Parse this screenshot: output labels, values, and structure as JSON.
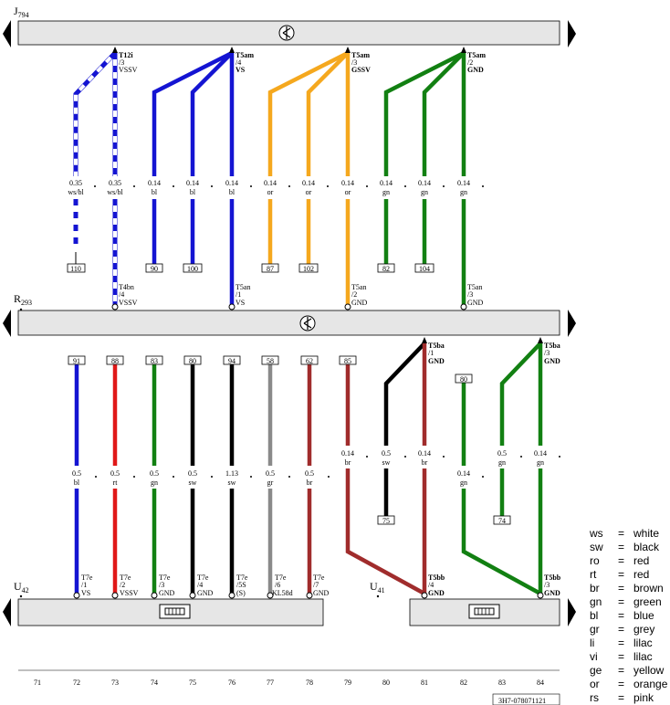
{
  "components": {
    "J794": {
      "letter": "J",
      "num": "794"
    },
    "R293": {
      "letter": "R",
      "num": "293"
    },
    "U42": {
      "letter": "U",
      "num": "42"
    },
    "U41": {
      "letter": "U",
      "num": "41"
    }
  },
  "connectors_top": [
    {
      "l1": "T12i",
      "l2": "/3",
      "l3": "VSSV"
    },
    {
      "l1": "T5am",
      "l2": "/4",
      "l3": "VS"
    },
    {
      "l1": "T5am",
      "l2": "/3",
      "l3": "GSSV"
    },
    {
      "l1": "T5am",
      "l2": "/2",
      "l3": "GND"
    }
  ],
  "connectors_mid": [
    {
      "l1": "T4bn",
      "l2": "/4",
      "l3": "VSSV"
    },
    {
      "l1": "T5an",
      "l2": "/1",
      "l3": "VS"
    },
    {
      "l1": "T5an",
      "l2": "/2",
      "l3": "GND"
    },
    {
      "l1": "T5an",
      "l2": "/3",
      "l3": "GND"
    }
  ],
  "upper_wires": [
    {
      "size": "0.35",
      "color": "ws/bl"
    },
    {
      "size": "0.35",
      "color": "ws/bl"
    },
    {
      "size": "0.14",
      "color": "bl"
    },
    {
      "size": "0.14",
      "color": "bl"
    },
    {
      "size": "0.14",
      "color": "bl"
    },
    {
      "size": "0.14",
      "color": "or"
    },
    {
      "size": "0.14",
      "color": "or"
    },
    {
      "size": "0.14",
      "color": "or"
    },
    {
      "size": "0.14",
      "color": "gn"
    },
    {
      "size": "0.14",
      "color": "gn"
    },
    {
      "size": "0.14",
      "color": "gn"
    }
  ],
  "upper_refs": [
    "110",
    "90",
    "100",
    "87",
    "102",
    "82",
    "104"
  ],
  "lower_refs_top": [
    "91",
    "88",
    "83",
    "80",
    "94",
    "58",
    "62",
    "85",
    "80"
  ],
  "lower_wires": [
    {
      "size": "0.5",
      "color": "bl"
    },
    {
      "size": "0.5",
      "color": "rt"
    },
    {
      "size": "0.5",
      "color": "gn"
    },
    {
      "size": "0.5",
      "color": "sw"
    },
    {
      "size": "1.13",
      "color": "sw"
    },
    {
      "size": "0.5",
      "color": "gr"
    },
    {
      "size": "0.5",
      "color": "br"
    },
    {
      "size": "0.14",
      "color": "br"
    },
    {
      "size": "0.5",
      "color": "sw"
    },
    {
      "size": "0.14",
      "color": "br"
    },
    {
      "size": "0.14",
      "color": "gn"
    },
    {
      "size": "0.5",
      "color": "gn"
    },
    {
      "size": "0.14",
      "color": "gn"
    }
  ],
  "lower_refs_bottom": [
    "75",
    "74"
  ],
  "connectors_t5ba": [
    {
      "l1": "T5ba",
      "l2": "/1",
      "l3": "GND"
    },
    {
      "l1": "T5ba",
      "l2": "/3",
      "l3": "GND"
    }
  ],
  "connectors_t7e": [
    {
      "l1": "T7e",
      "l2": "/1",
      "l3": "VS"
    },
    {
      "l1": "T7e",
      "l2": "/2",
      "l3": "VSSV"
    },
    {
      "l1": "T7e",
      "l2": "/3",
      "l3": "GND"
    },
    {
      "l1": "T7e",
      "l2": "/4",
      "l3": "GND"
    },
    {
      "l1": "T7e",
      "l2": "/5S",
      "l3": "(S)"
    },
    {
      "l1": "T7e",
      "l2": "/6",
      "l3": "KL58d"
    },
    {
      "l1": "T7e",
      "l2": "/7",
      "l3": "GND"
    }
  ],
  "connectors_t5bb": [
    {
      "l1": "T5bb",
      "l2": "/4",
      "l3": "GND"
    },
    {
      "l1": "T5bb",
      "l2": "/3",
      "l3": "GND"
    }
  ],
  "track_numbers": [
    "71",
    "72",
    "73",
    "74",
    "75",
    "76",
    "77",
    "78",
    "79",
    "80",
    "81",
    "82",
    "83",
    "84"
  ],
  "legend": [
    {
      "code": "ws",
      "eq": "=",
      "name": "white"
    },
    {
      "code": "sw",
      "eq": "=",
      "name": "black"
    },
    {
      "code": "ro",
      "eq": "=",
      "name": "red"
    },
    {
      "code": "rt",
      "eq": "=",
      "name": "red"
    },
    {
      "code": "br",
      "eq": "=",
      "name": "brown"
    },
    {
      "code": "gn",
      "eq": "=",
      "name": "green"
    },
    {
      "code": "bl",
      "eq": "=",
      "name": "blue"
    },
    {
      "code": "gr",
      "eq": "=",
      "name": "grey"
    },
    {
      "code": "li",
      "eq": "=",
      "name": "lilac"
    },
    {
      "code": "vi",
      "eq": "=",
      "name": "lilac"
    },
    {
      "code": "ge",
      "eq": "=",
      "name": "yellow"
    },
    {
      "code": "or",
      "eq": "=",
      "name": "orange"
    },
    {
      "code": "rs",
      "eq": "=",
      "name": "pink"
    }
  ],
  "doc_code": "3H7-078071121",
  "colors": {
    "blue": "#1414d2",
    "orange": "#f5a81e",
    "green": "#128012",
    "red": "#e01818",
    "brown": "#a02c2c",
    "black": "#000000",
    "grey": "#8a8a8a",
    "bar": "#e6e6e6"
  }
}
